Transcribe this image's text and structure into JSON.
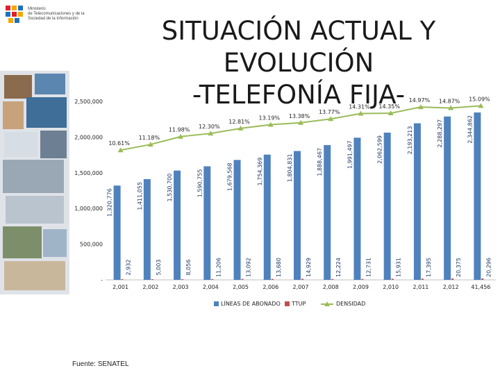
{
  "logo": {
    "lines": [
      "Ministerio",
      "de Telecomunicaciones y de la",
      "Sociedad de la Información"
    ],
    "icon": "ministry-logo-icon"
  },
  "title": {
    "line1": "SITUACIÓN ACTUAL Y EVOLUCIÓN",
    "line2": "-TELEFONÍA FIJA-"
  },
  "source": "Fuente: SENATEL",
  "chart_data": {
    "type": "bar",
    "categories": [
      "2,001",
      "2,002",
      "2,003",
      "2,004",
      "2,005",
      "2,006",
      "2,007",
      "2,008",
      "2,009",
      "2,010",
      "2,011",
      "2,012",
      "41,456"
    ],
    "ytick_labels": [
      "-",
      "500,000",
      "1,000,000",
      "1,500,000",
      "2,000,000",
      "2,500,000"
    ],
    "ylim": [
      0,
      2500000
    ],
    "series": [
      {
        "name": "LÍNEAS DE ABONADO",
        "color": "#4f81bd",
        "values": [
          1320776,
          1411055,
          1530700,
          1590755,
          1679568,
          1754369,
          1804831,
          1888467,
          1991497,
          2062599,
          2193213,
          2288297,
          2344862
        ],
        "labels": [
          "1,320,776",
          "1,411,055",
          "1,530,700",
          "1,590,755",
          "1,679,568",
          "1,754,369",
          "1,804,831",
          "1,888,467",
          "1,991,497",
          "2,062,599",
          "2,193,213",
          "2,288,297",
          "2,344,862"
        ]
      },
      {
        "name": "TTUP",
        "color": "#c0504d",
        "values": [
          2932,
          5003,
          8056,
          11206,
          13092,
          13680,
          14929,
          12224,
          12731,
          15931,
          17395,
          20375,
          20296
        ],
        "labels": [
          "2,932",
          "5,003",
          "8,056",
          "11,206",
          "13,092",
          "13,680",
          "14,929",
          "12,224",
          "12,731",
          "15,931",
          "17,395",
          "20,375",
          "20,296"
        ]
      },
      {
        "name": "DENSIDAD",
        "color": "#9bbb59",
        "values": [
          10.61,
          11.18,
          11.98,
          12.3,
          12.81,
          13.19,
          13.38,
          13.77,
          14.31,
          14.35,
          14.97,
          14.87,
          15.09
        ],
        "labels": [
          "10.61%",
          "11.18%",
          "11.98%",
          "12.30%",
          "12.81%",
          "13.19%",
          "13.38%",
          "13.77%",
          "14.31%",
          "14.35%",
          "14.97%",
          "14.87%",
          "15.09%"
        ]
      }
    ],
    "legend_position": "bottom",
    "grid": false
  }
}
